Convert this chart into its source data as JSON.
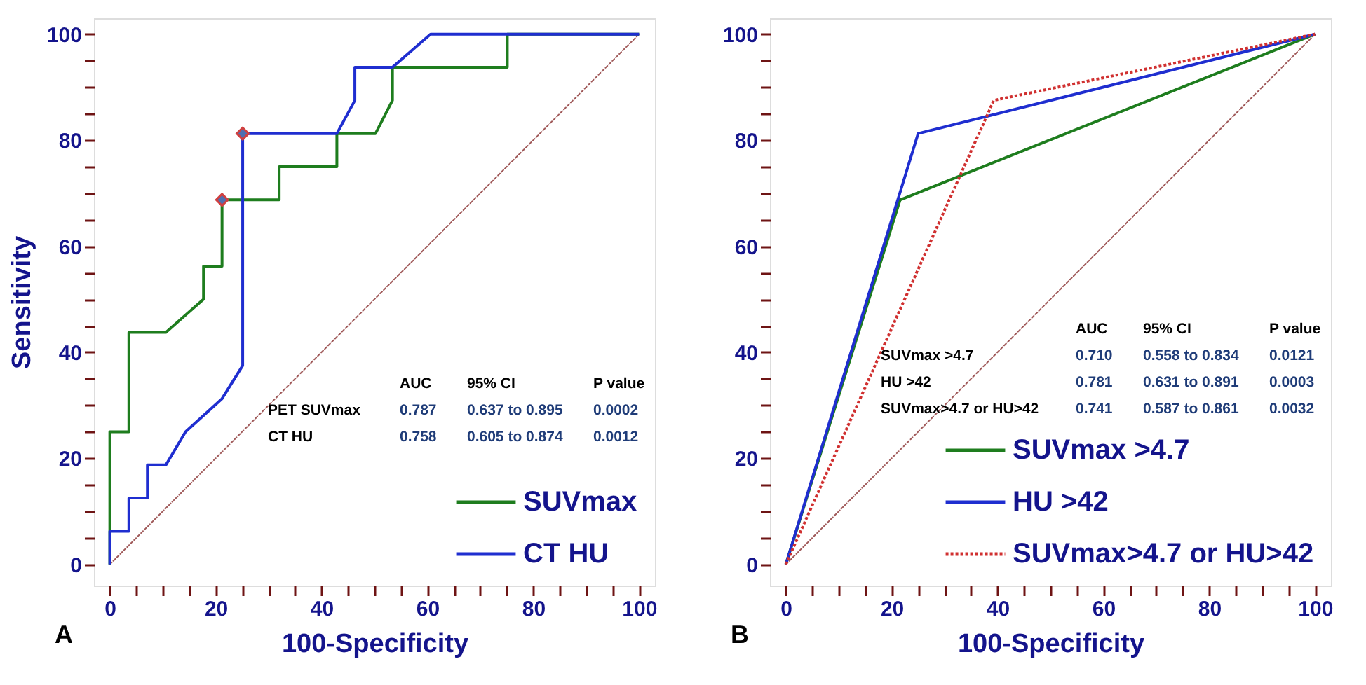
{
  "chart_data": [
    {
      "type": "line",
      "xlabel": "100-Specificity",
      "ylabel": "Sensitivity",
      "xlim": [
        -3,
        103
      ],
      "ylim": [
        -4,
        103
      ],
      "xticks": [
        0,
        {
          "value": 5,
          "label": null
        },
        {
          "value": 10,
          "label": null
        },
        {
          "value": 15,
          "label": null
        },
        20,
        {
          "value": 25,
          "label": null
        },
        {
          "value": 30,
          "label": null
        },
        {
          "value": 35,
          "label": null
        },
        40,
        {
          "value": 45,
          "label": null
        },
        {
          "value": 50,
          "label": null
        },
        {
          "value": 55,
          "label": null
        },
        60,
        {
          "value": 65,
          "label": null
        },
        {
          "value": 70,
          "label": null
        },
        {
          "value": 75,
          "label": null
        },
        80,
        {
          "value": 85,
          "label": null
        },
        {
          "value": 90,
          "label": null
        },
        {
          "value": 95,
          "label": null
        },
        100
      ],
      "yticks": [
        0,
        {
          "value": 5,
          "label": null
        },
        {
          "value": 10,
          "label": null
        },
        {
          "value": 15,
          "label": null
        },
        20,
        {
          "value": 25,
          "label": null
        },
        {
          "value": 30,
          "label": null
        },
        {
          "value": 35,
          "label": null
        },
        40,
        {
          "value": 45,
          "label": null
        },
        {
          "value": 50,
          "label": null
        },
        {
          "value": 55,
          "label": null
        },
        60,
        {
          "value": 65,
          "label": null
        },
        {
          "value": 70,
          "label": null
        },
        {
          "value": 75,
          "label": null
        },
        80,
        {
          "value": 85,
          "label": null
        },
        {
          "value": 90,
          "label": null
        },
        {
          "value": 95,
          "label": null
        },
        100
      ],
      "grid": false,
      "legend": "bottom right",
      "series": [
        {
          "color": "#a05a5a",
          "line_style": "dotted",
          "x": [
            0,
            100
          ],
          "values": [
            0,
            100
          ]
        },
        {
          "name": "SUVmax",
          "color": "#1e7d1e",
          "x": [
            0,
            0,
            3.6,
            3.6,
            10.6,
            17.7,
            17.7,
            21.2,
            21.2,
            32,
            32,
            42.9,
            42.9,
            50.2,
            53.4,
            53.4,
            75.1,
            75.1,
            100
          ],
          "values": [
            0,
            25,
            25,
            43.75,
            43.75,
            50,
            56.25,
            56.25,
            68.75,
            68.75,
            75,
            75,
            81.25,
            81.25,
            87.5,
            93.75,
            93.75,
            100,
            100
          ]
        },
        {
          "name": "CT HU",
          "color": "#1f2ed0",
          "x": [
            0,
            0,
            3.6,
            3.6,
            7.1,
            7.1,
            10.6,
            14.3,
            21.2,
            25.1,
            25.1,
            42.9,
            46.3,
            46.3,
            53.4,
            60.6,
            100
          ],
          "values": [
            0,
            6.25,
            6.25,
            12.5,
            12.5,
            18.75,
            18.75,
            25,
            31.25,
            37.5,
            81.25,
            81.25,
            87.5,
            93.75,
            93.75,
            100,
            100
          ]
        },
        {
          "type": "scatter",
          "marker": "diamond",
          "color": "#4f6fb0",
          "x": [
            21.2,
            25.1
          ],
          "values": [
            68.75,
            81.25
          ]
        }
      ],
      "annotations": [
        "A",
        "AUC",
        "95% CI",
        "P value",
        "PET SUVmax",
        "0.787",
        "0.637 to 0.895",
        "0.0002",
        "CT HU",
        "0.758",
        "0.605 to 0.874",
        "0.0012"
      ]
    },
    {
      "type": "line",
      "xlabel": "100-Specificity",
      "xlim": [
        -3,
        103
      ],
      "ylim": [
        -4,
        103
      ],
      "xticks": [
        0,
        {
          "value": 5,
          "label": null
        },
        {
          "value": 10,
          "label": null
        },
        {
          "value": 15,
          "label": null
        },
        20,
        {
          "value": 25,
          "label": null
        },
        {
          "value": 30,
          "label": null
        },
        {
          "value": 35,
          "label": null
        },
        40,
        {
          "value": 45,
          "label": null
        },
        {
          "value": 50,
          "label": null
        },
        {
          "value": 55,
          "label": null
        },
        60,
        {
          "value": 65,
          "label": null
        },
        {
          "value": 70,
          "label": null
        },
        {
          "value": 75,
          "label": null
        },
        80,
        {
          "value": 85,
          "label": null
        },
        {
          "value": 90,
          "label": null
        },
        {
          "value": 95,
          "label": null
        },
        100
      ],
      "yticks": [
        0,
        {
          "value": 5,
          "label": null
        },
        {
          "value": 10,
          "label": null
        },
        {
          "value": 15,
          "label": null
        },
        20,
        {
          "value": 25,
          "label": null
        },
        {
          "value": 30,
          "label": null
        },
        {
          "value": 35,
          "label": null
        },
        40,
        {
          "value": 45,
          "label": null
        },
        {
          "value": 50,
          "label": null
        },
        {
          "value": 55,
          "label": null
        },
        60,
        {
          "value": 65,
          "label": null
        },
        {
          "value": 70,
          "label": null
        },
        {
          "value": 75,
          "label": null
        },
        80,
        {
          "value": 85,
          "label": null
        },
        {
          "value": 90,
          "label": null
        },
        {
          "value": 95,
          "label": null
        },
        100
      ],
      "grid": false,
      "legend": "bottom right",
      "series": [
        {
          "color": "#a05a5a",
          "line_style": "dotted",
          "x": [
            0,
            100
          ],
          "values": [
            0,
            100
          ]
        },
        {
          "name": "SUVmax >4.7",
          "color": "#1e7d1e",
          "x": [
            0,
            21.6,
            100
          ],
          "values": [
            0,
            68.75,
            100
          ]
        },
        {
          "name": "HU >42",
          "color": "#1f2ed0",
          "x": [
            0,
            25,
            100
          ],
          "values": [
            0,
            81.25,
            100
          ]
        },
        {
          "name": "SUVmax>4.7 or HU>42",
          "color": "#d03030",
          "line_style": "dotted",
          "x": [
            0,
            39.3,
            100
          ],
          "values": [
            0,
            87.5,
            100
          ]
        }
      ],
      "annotations": [
        "B",
        "AUC",
        "95% CI",
        "P value",
        "SUVmax >4.7",
        "0.710",
        "0.558 to 0.834",
        "0.0121",
        "HU >42",
        "0.781",
        "0.631 to 0.891",
        "0.0003",
        "SUVmax>4.7 or HU>42",
        "0.741",
        "0.587 to 0.861",
        "0.0032"
      ]
    }
  ]
}
